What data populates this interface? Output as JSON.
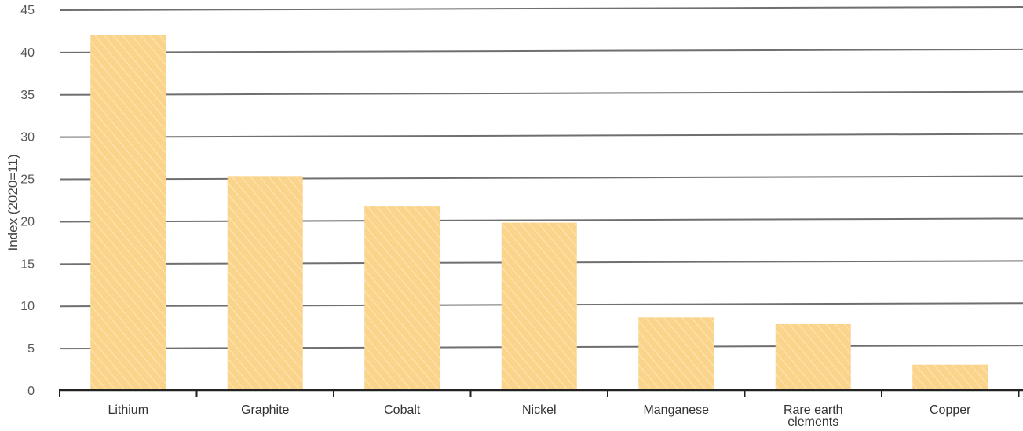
{
  "chart_data": {
    "type": "bar",
    "title": "",
    "xlabel": "",
    "ylabel": "Index (2020=11)",
    "categories": [
      [
        "Lithium"
      ],
      [
        "Graphite"
      ],
      [
        "Cobalt"
      ],
      [
        "Nickel"
      ],
      [
        "Manganese"
      ],
      [
        "Rare earth",
        "elements"
      ],
      [
        "Copper"
      ]
    ],
    "values": [
      42,
      25.3,
      21.7,
      19.8,
      8.6,
      7.8,
      3
    ],
    "ylim": [
      0,
      45
    ],
    "yticks": [
      0,
      5,
      10,
      15,
      20,
      25,
      30,
      35,
      40,
      45
    ],
    "grid": true,
    "legend": "none",
    "colors": {
      "bar": "#fad48a",
      "bar_hatch": "#fde8bf",
      "grid": "#6f6f6f",
      "axis": "#222222"
    }
  }
}
